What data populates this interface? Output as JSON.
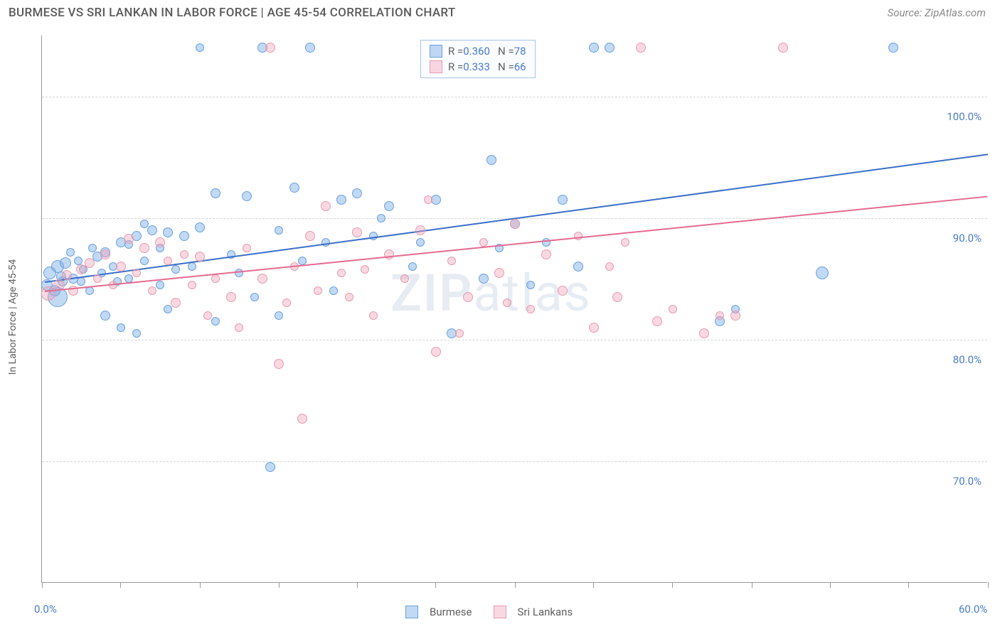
{
  "header": {
    "title": "BURMESE VS SRI LANKAN IN LABOR FORCE | AGE 45-54 CORRELATION CHART",
    "source": "Source: ZipAtlas.com"
  },
  "chart": {
    "type": "scatter",
    "ylabel": "In Labor Force | Age 45-54",
    "xlim": [
      0,
      60
    ],
    "ylim": [
      60,
      105
    ],
    "xtick_labels": [
      "0.0%",
      "60.0%"
    ],
    "xtick_positions_pct": [
      0,
      8.3,
      16.7,
      25,
      33.3,
      41.6,
      50,
      58.3,
      66.6,
      75,
      83.3,
      91.6,
      100
    ],
    "ytick_labels": [
      "70.0%",
      "80.0%",
      "90.0%",
      "100.0%"
    ],
    "ytick_values": [
      70,
      80,
      90,
      100
    ],
    "background": "#ffffff",
    "grid_color": "#d5d5d5",
    "series": [
      {
        "name": "Burmese",
        "fill": "rgba(120,170,230,0.45)",
        "stroke": "#6aa1de",
        "trend_color": "#3a6fc8",
        "trend": {
          "x0": 0.2,
          "y0": 84.8,
          "x1": 60,
          "y1": 95.3
        },
        "R": "0.360",
        "N": "78",
        "points": [
          [
            0.3,
            84.5,
            8
          ],
          [
            1.0,
            86.0,
            9
          ],
          [
            1.2,
            85.2,
            7
          ],
          [
            1.0,
            83.5,
            14
          ],
          [
            1.5,
            86.3,
            8
          ],
          [
            2.0,
            85.0,
            7
          ],
          [
            2.3,
            86.5,
            6
          ],
          [
            2.6,
            85.8,
            6
          ],
          [
            3.0,
            84.0,
            6
          ],
          [
            0.5,
            85.5,
            9
          ],
          [
            3.5,
            86.8,
            7
          ],
          [
            3.8,
            85.5,
            6
          ],
          [
            4.0,
            87.2,
            7
          ],
          [
            4.5,
            86.0,
            6
          ],
          [
            5.0,
            88.0,
            7
          ],
          [
            5.5,
            85.0,
            6
          ],
          [
            6.0,
            88.5,
            7
          ],
          [
            6.5,
            86.5,
            6
          ],
          [
            7.0,
            89.0,
            7
          ],
          [
            7.5,
            87.5,
            6
          ],
          [
            8.0,
            88.8,
            7
          ],
          [
            8.5,
            85.8,
            6
          ],
          [
            4.0,
            82.0,
            7
          ],
          [
            5.0,
            81.0,
            6
          ],
          [
            6.0,
            80.5,
            6
          ],
          [
            9.0,
            88.5,
            7
          ],
          [
            10.0,
            89.2,
            7
          ],
          [
            11.0,
            92.0,
            7
          ],
          [
            12.0,
            87.0,
            6
          ],
          [
            13.0,
            91.8,
            7
          ],
          [
            14.0,
            104.0,
            7
          ],
          [
            15.0,
            89.0,
            6
          ],
          [
            16.0,
            92.5,
            7
          ],
          [
            17.0,
            104.0,
            7
          ],
          [
            18.0,
            88.0,
            6
          ],
          [
            19.0,
            91.5,
            7
          ],
          [
            14.5,
            69.5,
            7
          ],
          [
            15.0,
            82.0,
            6
          ],
          [
            20.0,
            92.0,
            7
          ],
          [
            21.0,
            88.5,
            6
          ],
          [
            22.0,
            91.0,
            7
          ],
          [
            23.5,
            86.0,
            6
          ],
          [
            25.0,
            91.5,
            7
          ],
          [
            27.0,
            104.0,
            7
          ],
          [
            28.0,
            85.0,
            7
          ],
          [
            28.5,
            94.8,
            7
          ],
          [
            30.0,
            89.5,
            7
          ],
          [
            31.0,
            84.5,
            6
          ],
          [
            33.0,
            91.5,
            7
          ],
          [
            34.0,
            86.0,
            7
          ],
          [
            35.0,
            104.0,
            7
          ],
          [
            36.0,
            104.0,
            7
          ],
          [
            43.0,
            81.5,
            7
          ],
          [
            44.0,
            82.5,
            6
          ],
          [
            49.5,
            85.5,
            9
          ],
          [
            54.0,
            104.0,
            7
          ],
          [
            26.0,
            80.5,
            7
          ],
          [
            10.0,
            104.0,
            6
          ],
          [
            8.0,
            82.5,
            6
          ],
          [
            11.0,
            81.5,
            6
          ],
          [
            1.8,
            87.2,
            6
          ],
          [
            2.5,
            84.8,
            6
          ],
          [
            0.8,
            84.0,
            8
          ],
          [
            1.3,
            84.8,
            7
          ],
          [
            3.2,
            87.5,
            6
          ],
          [
            9.5,
            86.0,
            6
          ],
          [
            12.5,
            85.5,
            6
          ],
          [
            13.5,
            83.5,
            6
          ],
          [
            18.5,
            84.0,
            6
          ],
          [
            21.5,
            90.0,
            6
          ],
          [
            24.0,
            88.0,
            6
          ],
          [
            29.0,
            87.5,
            6
          ],
          [
            32.0,
            88.0,
            6
          ],
          [
            16.5,
            86.5,
            6
          ],
          [
            7.5,
            84.5,
            6
          ],
          [
            6.5,
            89.5,
            6
          ],
          [
            5.5,
            87.8,
            6
          ],
          [
            4.8,
            84.8,
            6
          ]
        ]
      },
      {
        "name": "Sri Lankans",
        "fill": "rgba(240,160,180,0.40)",
        "stroke": "#e89bb0",
        "trend_color": "#e56a8f",
        "trend": {
          "x0": 0.2,
          "y0": 84.0,
          "x1": 60,
          "y1": 91.8
        },
        "R": "0.333",
        "N": "66",
        "points": [
          [
            0.4,
            83.8,
            10
          ],
          [
            1.1,
            84.5,
            8
          ],
          [
            1.6,
            85.3,
            7
          ],
          [
            2.0,
            84.0,
            7
          ],
          [
            2.5,
            85.8,
            7
          ],
          [
            3.0,
            86.3,
            7
          ],
          [
            3.5,
            85.0,
            6
          ],
          [
            4.0,
            87.0,
            7
          ],
          [
            4.5,
            84.5,
            6
          ],
          [
            5.0,
            86.0,
            7
          ],
          [
            5.5,
            88.3,
            7
          ],
          [
            6.0,
            85.5,
            6
          ],
          [
            6.5,
            87.5,
            7
          ],
          [
            7.0,
            84.0,
            6
          ],
          [
            7.5,
            88.0,
            7
          ],
          [
            8.0,
            86.5,
            6
          ],
          [
            8.5,
            83.0,
            7
          ],
          [
            9.0,
            87.0,
            6
          ],
          [
            9.5,
            84.5,
            6
          ],
          [
            10.0,
            86.8,
            7
          ],
          [
            10.5,
            82.0,
            6
          ],
          [
            11.0,
            85.0,
            6
          ],
          [
            12.0,
            83.5,
            7
          ],
          [
            13.0,
            87.5,
            6
          ],
          [
            14.0,
            85.0,
            7
          ],
          [
            14.5,
            104.0,
            7
          ],
          [
            15.0,
            78.0,
            7
          ],
          [
            16.0,
            86.0,
            6
          ],
          [
            16.5,
            73.5,
            7
          ],
          [
            17.0,
            88.5,
            7
          ],
          [
            18.0,
            91.0,
            7
          ],
          [
            19.0,
            85.5,
            6
          ],
          [
            20.0,
            88.8,
            7
          ],
          [
            21.0,
            82.0,
            6
          ],
          [
            22.0,
            87.0,
            7
          ],
          [
            23.0,
            85.0,
            6
          ],
          [
            24.0,
            89.0,
            7
          ],
          [
            25.0,
            79.0,
            7
          ],
          [
            26.0,
            86.5,
            6
          ],
          [
            27.0,
            83.5,
            7
          ],
          [
            28.0,
            88.0,
            6
          ],
          [
            29.0,
            85.5,
            7
          ],
          [
            30.0,
            89.5,
            7
          ],
          [
            31.0,
            82.5,
            6
          ],
          [
            32.0,
            87.0,
            7
          ],
          [
            33.0,
            84.0,
            7
          ],
          [
            34.0,
            88.5,
            6
          ],
          [
            35.0,
            81.0,
            7
          ],
          [
            36.0,
            86.0,
            6
          ],
          [
            36.5,
            83.5,
            7
          ],
          [
            37.0,
            88.0,
            6
          ],
          [
            38.0,
            104.0,
            7
          ],
          [
            39.0,
            81.5,
            7
          ],
          [
            40.0,
            82.5,
            6
          ],
          [
            42.0,
            80.5,
            7
          ],
          [
            43.0,
            82.0,
            6
          ],
          [
            44.0,
            82.0,
            7
          ],
          [
            47.0,
            104.0,
            7
          ],
          [
            24.5,
            91.5,
            6
          ],
          [
            19.5,
            83.5,
            6
          ],
          [
            12.5,
            81.0,
            6
          ],
          [
            15.5,
            83.0,
            6
          ],
          [
            17.5,
            84.0,
            6
          ],
          [
            20.5,
            85.8,
            6
          ],
          [
            26.5,
            80.5,
            6
          ],
          [
            29.5,
            83.0,
            6
          ]
        ]
      }
    ],
    "legend_bottom": [
      "Burmese",
      "Sri Lankans"
    ],
    "watermark": "ZIPatlas"
  }
}
